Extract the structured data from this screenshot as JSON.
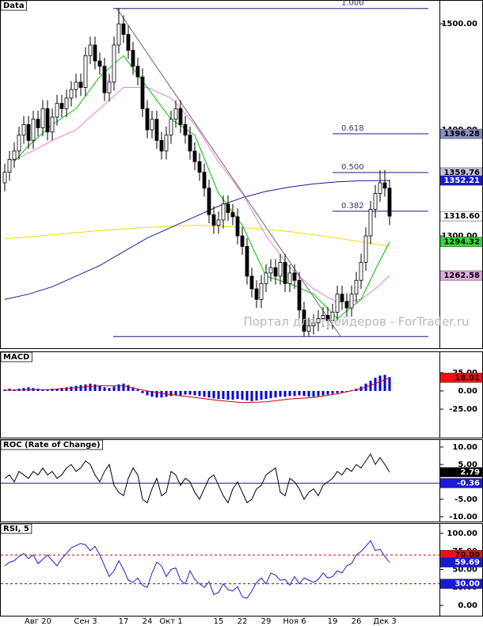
{
  "chart_data": [
    {
      "type": "candlestick",
      "title": "Data",
      "categories": [
        null,
        null,
        null,
        null,
        null,
        null,
        null,
        "Авг 20",
        null,
        null,
        null,
        null,
        null,
        null,
        null,
        null,
        null,
        "Сен 3",
        null,
        null,
        null,
        null,
        null,
        null,
        null,
        "17",
        null,
        null,
        null,
        null,
        "24",
        null,
        null,
        null,
        null,
        "Окт 1",
        null,
        null,
        null,
        null,
        null,
        null,
        null,
        null,
        null,
        "15",
        null,
        null,
        null,
        null,
        "22",
        null,
        null,
        null,
        null,
        "29",
        null,
        null,
        null,
        null,
        null,
        "Ноя 6",
        null,
        null,
        null,
        null,
        null,
        null,
        null,
        "19",
        null,
        null,
        null,
        null,
        "26",
        null,
        null,
        null,
        null,
        null,
        "Дек 3",
        null
      ],
      "open": [
        1350,
        1360,
        1372,
        1380,
        1395,
        1405,
        1390,
        1410,
        1402,
        1420,
        1398,
        1412,
        1425,
        1420,
        1430,
        1438,
        1445,
        1440,
        1470,
        1480,
        1465,
        1460,
        1435,
        1445,
        1480,
        1500,
        1490,
        1475,
        1460,
        1450,
        1420,
        1400,
        1410,
        1390,
        1380,
        1395,
        1410,
        1420,
        1405,
        1395,
        1380,
        1370,
        1360,
        1345,
        1320,
        1310,
        1315,
        1330,
        1322,
        1318,
        1300,
        1290,
        1262,
        1250,
        1240,
        1255,
        1265,
        1270,
        1262,
        1275,
        1255,
        1265,
        1258,
        1230,
        1210,
        1215,
        1218,
        1222,
        1225,
        1220,
        1228,
        1245,
        1238,
        1232,
        1245,
        1258,
        1275,
        1300,
        1325,
        1340,
        1350,
        1345
      ],
      "high": [
        1368,
        1380,
        1388,
        1403,
        1413,
        1413,
        1418,
        1418,
        1428,
        1428,
        1420,
        1433,
        1433,
        1438,
        1446,
        1453,
        1453,
        1478,
        1488,
        1488,
        1473,
        1468,
        1453,
        1488,
        1515,
        1508,
        1498,
        1483,
        1468,
        1458,
        1428,
        1418,
        1418,
        1398,
        1403,
        1418,
        1428,
        1428,
        1413,
        1403,
        1388,
        1378,
        1368,
        1353,
        1328,
        1323,
        1338,
        1338,
        1330,
        1326,
        1308,
        1298,
        1270,
        1258,
        1263,
        1273,
        1278,
        1278,
        1283,
        1283,
        1273,
        1273,
        1266,
        1238,
        1223,
        1226,
        1230,
        1233,
        1233,
        1236,
        1253,
        1253,
        1246,
        1253,
        1266,
        1283,
        1308,
        1333,
        1348,
        1362,
        1362,
        1353
      ],
      "low": [
        1342,
        1352,
        1364,
        1372,
        1387,
        1382,
        1382,
        1394,
        1394,
        1390,
        1390,
        1404,
        1412,
        1412,
        1422,
        1430,
        1432,
        1432,
        1462,
        1457,
        1452,
        1427,
        1427,
        1437,
        1472,
        1482,
        1467,
        1452,
        1442,
        1412,
        1392,
        1392,
        1382,
        1372,
        1372,
        1387,
        1402,
        1397,
        1387,
        1372,
        1362,
        1352,
        1337,
        1312,
        1302,
        1302,
        1307,
        1314,
        1310,
        1292,
        1282,
        1254,
        1242,
        1232,
        1232,
        1247,
        1257,
        1254,
        1254,
        1247,
        1247,
        1250,
        1222,
        1205,
        1205,
        1207,
        1210,
        1214,
        1212,
        1212,
        1220,
        1230,
        1224,
        1224,
        1237,
        1250,
        1267,
        1292,
        1317,
        1332,
        1337,
        1310
      ],
      "close": [
        1360,
        1372,
        1380,
        1395,
        1405,
        1390,
        1410,
        1402,
        1420,
        1398,
        1412,
        1425,
        1420,
        1430,
        1438,
        1445,
        1440,
        1470,
        1480,
        1465,
        1460,
        1435,
        1445,
        1480,
        1500,
        1490,
        1475,
        1460,
        1450,
        1420,
        1400,
        1410,
        1390,
        1380,
        1395,
        1410,
        1420,
        1405,
        1395,
        1380,
        1370,
        1360,
        1345,
        1320,
        1310,
        1315,
        1330,
        1322,
        1318,
        1300,
        1290,
        1262,
        1250,
        1240,
        1255,
        1265,
        1270,
        1262,
        1275,
        1255,
        1265,
        1258,
        1230,
        1210,
        1215,
        1218,
        1222,
        1225,
        1220,
        1228,
        1245,
        1238,
        1232,
        1245,
        1258,
        1275,
        1300,
        1325,
        1340,
        1350,
        1345,
        1318.6
      ],
      "last_price": {
        "value": 1318.6,
        "label": "1318.60"
      },
      "ylim": [
        1194,
        1521
      ],
      "yticks": [
        {
          "value": 1500,
          "label": "1500.00"
        },
        {
          "value": 1400,
          "label": "1400.00"
        },
        {
          "value": 1300,
          "label": "1300.00"
        }
      ],
      "overlays": [
        {
          "color": "#e8e000",
          "x": [
            0,
            10,
            20,
            30,
            40,
            50,
            60,
            70,
            81
          ],
          "values": [
            1297,
            1301,
            1305,
            1308,
            1310,
            1308,
            1304,
            1298,
            1290
          ]
        },
        {
          "color": "#1a1aa0",
          "box_color": "#1a1ad0",
          "text_color": "#ffffff",
          "x": [
            0,
            5,
            10,
            15,
            20,
            25,
            30,
            35,
            40,
            45,
            50,
            55,
            60,
            65,
            70,
            75,
            81
          ],
          "values": [
            1240,
            1245,
            1252,
            1262,
            1272,
            1285,
            1298,
            1308,
            1318,
            1328,
            1336,
            1342,
            1346,
            1349,
            1351,
            1352,
            1352.21
          ]
        },
        {
          "color": "#e080e0",
          "box_color": "#e6a8e6",
          "text_color": "#000000",
          "x": [
            1,
            5,
            10,
            15,
            20,
            25,
            30,
            35,
            40,
            45,
            50,
            55,
            60,
            65,
            70,
            75,
            78,
            81
          ],
          "values": [
            1370,
            1378,
            1390,
            1400,
            1420,
            1440,
            1440,
            1430,
            1405,
            1370,
            1340,
            1300,
            1270,
            1250,
            1237,
            1240,
            1250,
            1262.58
          ]
        },
        {
          "color": "#00c000",
          "box_color": "#33dd33",
          "text_color": "#000000",
          "x": [
            2,
            5,
            10,
            15,
            20,
            25,
            30,
            35,
            40,
            45,
            50,
            55,
            60,
            65,
            70,
            75,
            78,
            81
          ],
          "values": [
            1370,
            1385,
            1405,
            1420,
            1450,
            1470,
            1440,
            1410,
            1395,
            1340,
            1310,
            1262,
            1255,
            1245,
            1222,
            1240,
            1268,
            1294.32
          ]
        }
      ],
      "levels": [
        {
          "label": "1.000",
          "value": 1514.5,
          "color": "#1a1a8a"
        },
        {
          "label": "0.618",
          "value": 1396.28,
          "color": "#1a1a8a",
          "box_color": "#8a90c0",
          "text_color": "#000000"
        },
        {
          "label": "0.500",
          "value": 1359.76,
          "color": "#1a1a8a",
          "box_color": "#c0c4dc",
          "text_color": "#000000"
        },
        {
          "label": "0.382",
          "value": 1323.24,
          "color": "#1a1a8a"
        },
        {
          "value": 1205,
          "color": "#1a1a8a"
        }
      ],
      "watermark": "Портал для трейдеров - ForTrader.ru"
    },
    {
      "type": "bar",
      "title": "MACD",
      "color": "#0000e0",
      "values": [
        2,
        3,
        2,
        3,
        4,
        5,
        4,
        3,
        2,
        2,
        3,
        3,
        4,
        5,
        6,
        7,
        8,
        9,
        10,
        9,
        7,
        5,
        4,
        6,
        9,
        10,
        8,
        5,
        2,
        -3,
        -6,
        -8,
        -9,
        -9,
        -8,
        -7,
        -6,
        -6,
        -5,
        -5,
        -6,
        -7,
        -8,
        -9,
        -10,
        -11,
        -11,
        -12,
        -12,
        -11,
        -12,
        -13,
        -14,
        -13,
        -12,
        -11,
        -10,
        -9,
        -8,
        -8,
        -7,
        -7,
        -6,
        -7,
        -8,
        -8,
        -7,
        -6,
        -5,
        -4,
        -3,
        -2,
        -1,
        1,
        3,
        6,
        10,
        14,
        18,
        21,
        22,
        19
      ],
      "ylim": [
        -64,
        52
      ],
      "yticks": [
        {
          "value": 25,
          "label": "25.00"
        },
        {
          "value": 0,
          "label": "0.00"
        },
        {
          "value": -25,
          "label": "-25.00"
        }
      ],
      "overlays": [
        {
          "color": "#cc0000",
          "box_color": "#ee1111",
          "text_color": "#000000",
          "x": [
            0,
            10,
            20,
            25,
            30,
            35,
            40,
            45,
            50,
            55,
            60,
            65,
            70,
            75,
            78,
            81
          ],
          "values": [
            1,
            2,
            7,
            7,
            0,
            -5,
            -9,
            -13,
            -16,
            -15,
            -11,
            -9,
            -4,
            3,
            10,
            18.01
          ]
        }
      ]
    },
    {
      "type": "line",
      "title": "ROC (Rate of Change)",
      "color": "#000000",
      "box_color": "#000000",
      "text_color": "#ffffff",
      "values": [
        1,
        2,
        0,
        3,
        2,
        1,
        3,
        2,
        4,
        2,
        3,
        1,
        2,
        4,
        5,
        3,
        4,
        6,
        5,
        2,
        0,
        3,
        5,
        -1,
        -3,
        -4,
        1,
        4,
        2,
        -5,
        -6,
        -2,
        1,
        -4,
        -3,
        3,
        2,
        -1,
        1,
        0,
        -3,
        -5,
        -2,
        1,
        2,
        -1,
        -4,
        -6,
        -2,
        0,
        -3,
        -6,
        -5,
        -2,
        -1,
        2,
        3,
        4,
        -3,
        -4,
        1,
        0,
        -2,
        -5,
        -3,
        -2,
        -4,
        -1,
        0,
        1,
        3,
        2,
        4,
        3,
        5,
        4,
        6,
        8,
        5,
        7,
        5,
        2.79
      ],
      "ylim": [
        -11.4,
        11.8
      ],
      "yticks": [
        {
          "value": 10,
          "label": "10.00"
        },
        {
          "value": 5,
          "label": "5.00"
        },
        {
          "value": 0,
          "label": "0.00"
        },
        {
          "value": -5,
          "label": "-5.00"
        },
        {
          "value": -10,
          "label": "-10.00"
        }
      ],
      "levels": [
        {
          "value": -0.36,
          "color": "#1a1ad0",
          "box_color": "#1a1ad0",
          "text_color": "#ffffff"
        }
      ]
    },
    {
      "type": "line",
      "title": "RSI, 5",
      "color": "#2020c0",
      "box_color": "#1a1ad0",
      "text_color": "#ffffff",
      "values": [
        55,
        60,
        62,
        68,
        72,
        65,
        70,
        58,
        64,
        70,
        62,
        55,
        65,
        72,
        80,
        83,
        86,
        84,
        76,
        82,
        70,
        55,
        40,
        48,
        62,
        50,
        35,
        32,
        38,
        28,
        25,
        45,
        60,
        55,
        40,
        50,
        52,
        35,
        30,
        48,
        36,
        30,
        25,
        33,
        15,
        18,
        30,
        22,
        20,
        26,
        12,
        10,
        20,
        32,
        38,
        30,
        45,
        42,
        35,
        36,
        28,
        40,
        30,
        38,
        35,
        32,
        36,
        45,
        38,
        40,
        48,
        45,
        55,
        58,
        70,
        75,
        82,
        90,
        76,
        78,
        68,
        59.69
      ],
      "ylim": [
        -14.3,
        112
      ],
      "yticks": [
        {
          "value": 100,
          "label": "100.00"
        },
        {
          "value": 75,
          "label": "75.00"
        },
        {
          "value": 50,
          "label": "50.00"
        },
        {
          "value": 25,
          "label": "25.00"
        },
        {
          "value": 0,
          "label": "0.00"
        }
      ],
      "levels": [
        {
          "value": 70,
          "label": "70.00",
          "color": "#cc0000",
          "dash": true,
          "box_color": "#ee1111",
          "text_color": "#000000"
        },
        {
          "value": 30,
          "label": "30.00",
          "color": "#1a1ad0",
          "dash": true,
          "box_color": "#1a1ad0",
          "text_color": "#ffffff"
        }
      ]
    }
  ]
}
